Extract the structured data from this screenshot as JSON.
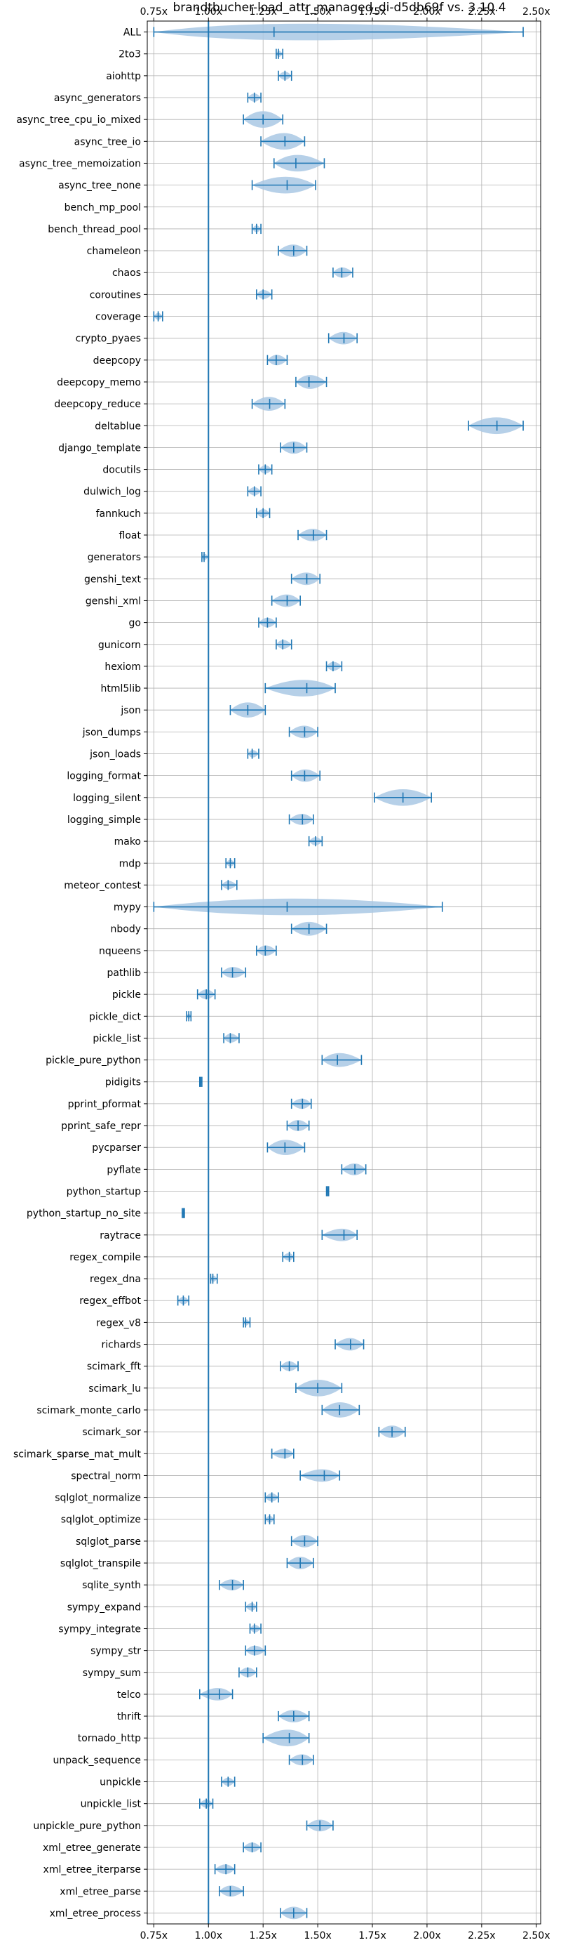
{
  "chart_data": {
    "type": "violin",
    "title": "brandtbucher-load_attr_managed_di-d5db69f vs. 3.10.4",
    "xlabel": "",
    "ylabel": "",
    "xlim": [
      0.72,
      2.52
    ],
    "xticks": [
      0.75,
      1.0,
      1.25,
      1.5,
      1.75,
      2.0,
      2.25,
      2.5
    ],
    "xtick_labels": [
      "0.75x",
      "1.00x",
      "1.25x",
      "1.50x",
      "1.75x",
      "2.00x",
      "2.25x",
      "2.50x"
    ],
    "reference_line": 1.0,
    "grid": true,
    "tick_labels_top_and_bottom": true,
    "colors": {
      "violin_fill": "#a9c8e4",
      "line": "#1f77b4",
      "grid": "#b0b0b0"
    },
    "benchmarks": [
      {
        "name": "ALL",
        "min": 0.75,
        "max": 2.44,
        "mean": 1.3,
        "median": 1.3,
        "width": 0.45
      },
      {
        "name": "2to3",
        "min": 1.31,
        "max": 1.34,
        "mean": 1.32,
        "median": 1.32,
        "width": 0.015
      },
      {
        "name": "aiohttp",
        "min": 1.32,
        "max": 1.38,
        "mean": 1.35,
        "median": 1.35,
        "width": 0.03
      },
      {
        "name": "async_generators",
        "min": 1.18,
        "max": 1.24,
        "mean": 1.21,
        "median": 1.21,
        "width": 0.03
      },
      {
        "name": "async_tree_cpu_io_mixed",
        "min": 1.16,
        "max": 1.34,
        "mean": 1.25,
        "median": 1.25,
        "width": 0.09
      },
      {
        "name": "async_tree_io",
        "min": 1.24,
        "max": 1.44,
        "mean": 1.35,
        "median": 1.35,
        "width": 0.1
      },
      {
        "name": "async_tree_memoization",
        "min": 1.3,
        "max": 1.53,
        "mean": 1.4,
        "median": 1.38,
        "width": 0.11
      },
      {
        "name": "async_tree_none",
        "min": 1.2,
        "max": 1.49,
        "mean": 1.36,
        "median": 1.36,
        "width": 0.14
      },
      {
        "name": "bench_mp_pool",
        "min": null,
        "max": null,
        "mean": null,
        "median": null,
        "width": 0
      },
      {
        "name": "bench_thread_pool",
        "min": 1.2,
        "max": 1.24,
        "mean": 1.22,
        "median": 1.22,
        "width": 0.02
      },
      {
        "name": "chameleon",
        "min": 1.32,
        "max": 1.45,
        "mean": 1.39,
        "median": 1.39,
        "width": 0.06
      },
      {
        "name": "chaos",
        "min": 1.57,
        "max": 1.66,
        "mean": 1.61,
        "median": 1.61,
        "width": 0.045
      },
      {
        "name": "coroutines",
        "min": 1.22,
        "max": 1.29,
        "mean": 1.25,
        "median": 1.25,
        "width": 0.035
      },
      {
        "name": "coverage",
        "min": 0.75,
        "max": 0.79,
        "mean": 0.77,
        "median": 0.77,
        "width": 0.02
      },
      {
        "name": "crypto_pyaes",
        "min": 1.55,
        "max": 1.68,
        "mean": 1.62,
        "median": 1.62,
        "width": 0.06
      },
      {
        "name": "deepcopy",
        "min": 1.27,
        "max": 1.36,
        "mean": 1.31,
        "median": 1.31,
        "width": 0.045
      },
      {
        "name": "deepcopy_memo",
        "min": 1.4,
        "max": 1.54,
        "mean": 1.46,
        "median": 1.46,
        "width": 0.07
      },
      {
        "name": "deepcopy_reduce",
        "min": 1.2,
        "max": 1.35,
        "mean": 1.28,
        "median": 1.28,
        "width": 0.07
      },
      {
        "name": "deltablue",
        "min": 2.19,
        "max": 2.44,
        "mean": 2.32,
        "median": 2.32,
        "width": 0.12
      },
      {
        "name": "django_template",
        "min": 1.33,
        "max": 1.45,
        "mean": 1.39,
        "median": 1.39,
        "width": 0.06
      },
      {
        "name": "docutils",
        "min": 1.23,
        "max": 1.29,
        "mean": 1.26,
        "median": 1.26,
        "width": 0.03
      },
      {
        "name": "dulwich_log",
        "min": 1.18,
        "max": 1.24,
        "mean": 1.21,
        "median": 1.21,
        "width": 0.03
      },
      {
        "name": "fannkuch",
        "min": 1.22,
        "max": 1.28,
        "mean": 1.25,
        "median": 1.25,
        "width": 0.03
      },
      {
        "name": "float",
        "min": 1.41,
        "max": 1.54,
        "mean": 1.48,
        "median": 1.48,
        "width": 0.06
      },
      {
        "name": "generators",
        "min": 0.97,
        "max": 1.0,
        "mean": 0.98,
        "median": 0.98,
        "width": 0.015
      },
      {
        "name": "genshi_text",
        "min": 1.38,
        "max": 1.51,
        "mean": 1.45,
        "median": 1.45,
        "width": 0.06
      },
      {
        "name": "genshi_xml",
        "min": 1.29,
        "max": 1.42,
        "mean": 1.36,
        "median": 1.36,
        "width": 0.06
      },
      {
        "name": "go",
        "min": 1.23,
        "max": 1.31,
        "mean": 1.27,
        "median": 1.27,
        "width": 0.04
      },
      {
        "name": "gunicorn",
        "min": 1.31,
        "max": 1.38,
        "mean": 1.34,
        "median": 1.34,
        "width": 0.035
      },
      {
        "name": "hexiom",
        "min": 1.54,
        "max": 1.61,
        "mean": 1.57,
        "median": 1.57,
        "width": 0.035
      },
      {
        "name": "html5lib",
        "min": 1.26,
        "max": 1.58,
        "mean": 1.45,
        "median": 1.45,
        "width": 0.13
      },
      {
        "name": "json",
        "min": 1.1,
        "max": 1.26,
        "mean": 1.18,
        "median": 1.18,
        "width": 0.08
      },
      {
        "name": "json_dumps",
        "min": 1.37,
        "max": 1.5,
        "mean": 1.44,
        "median": 1.44,
        "width": 0.06
      },
      {
        "name": "json_loads",
        "min": 1.18,
        "max": 1.23,
        "mean": 1.2,
        "median": 1.2,
        "width": 0.025
      },
      {
        "name": "logging_format",
        "min": 1.38,
        "max": 1.51,
        "mean": 1.44,
        "median": 1.44,
        "width": 0.06
      },
      {
        "name": "logging_silent",
        "min": 1.76,
        "max": 2.02,
        "mean": 1.89,
        "median": 1.89,
        "width": 0.13
      },
      {
        "name": "logging_simple",
        "min": 1.37,
        "max": 1.48,
        "mean": 1.43,
        "median": 1.43,
        "width": 0.05
      },
      {
        "name": "mako",
        "min": 1.46,
        "max": 1.52,
        "mean": 1.49,
        "median": 1.49,
        "width": 0.03
      },
      {
        "name": "mdp",
        "min": 1.08,
        "max": 1.12,
        "mean": 1.1,
        "median": 1.1,
        "width": 0.02
      },
      {
        "name": "meteor_contest",
        "min": 1.06,
        "max": 1.13,
        "mean": 1.09,
        "median": 1.09,
        "width": 0.03
      },
      {
        "name": "mypy",
        "min": 0.75,
        "max": 2.07,
        "mean": 1.36,
        "median": 1.36,
        "width": 0.6
      },
      {
        "name": "nbody",
        "min": 1.38,
        "max": 1.54,
        "mean": 1.46,
        "median": 1.46,
        "width": 0.07
      },
      {
        "name": "nqueens",
        "min": 1.22,
        "max": 1.31,
        "mean": 1.26,
        "median": 1.26,
        "width": 0.045
      },
      {
        "name": "pathlib",
        "min": 1.06,
        "max": 1.17,
        "mean": 1.11,
        "median": 1.11,
        "width": 0.05
      },
      {
        "name": "pickle",
        "min": 0.95,
        "max": 1.03,
        "mean": 0.99,
        "median": 0.99,
        "width": 0.04
      },
      {
        "name": "pickle_dict",
        "min": 0.9,
        "max": 0.92,
        "mean": 0.91,
        "median": 0.91,
        "width": 0.01
      },
      {
        "name": "pickle_list",
        "min": 1.07,
        "max": 1.14,
        "mean": 1.1,
        "median": 1.1,
        "width": 0.035
      },
      {
        "name": "pickle_pure_python",
        "min": 1.52,
        "max": 1.7,
        "mean": 1.59,
        "median": 1.59,
        "width": 0.07
      },
      {
        "name": "pidigits",
        "min": 0.96,
        "max": 0.97,
        "mean": 0.965,
        "median": 0.965,
        "width": 0.005
      },
      {
        "name": "pprint_pformat",
        "min": 1.38,
        "max": 1.47,
        "mean": 1.43,
        "median": 1.43,
        "width": 0.045
      },
      {
        "name": "pprint_safe_repr",
        "min": 1.36,
        "max": 1.46,
        "mean": 1.41,
        "median": 1.41,
        "width": 0.05
      },
      {
        "name": "pycparser",
        "min": 1.27,
        "max": 1.44,
        "mean": 1.35,
        "median": 1.35,
        "width": 0.08
      },
      {
        "name": "pyflate",
        "min": 1.61,
        "max": 1.72,
        "mean": 1.67,
        "median": 1.67,
        "width": 0.055
      },
      {
        "name": "python_startup",
        "min": 1.54,
        "max": 1.55,
        "mean": 1.545,
        "median": 1.545,
        "width": 0.005
      },
      {
        "name": "python_startup_no_site",
        "min": 0.88,
        "max": 0.89,
        "mean": 0.885,
        "median": 0.885,
        "width": 0.005
      },
      {
        "name": "raytrace",
        "min": 1.52,
        "max": 1.68,
        "mean": 1.62,
        "median": 1.62,
        "width": 0.06
      },
      {
        "name": "regex_compile",
        "min": 1.34,
        "max": 1.39,
        "mean": 1.37,
        "median": 1.37,
        "width": 0.025
      },
      {
        "name": "regex_dna",
        "min": 1.01,
        "max": 1.04,
        "mean": 1.02,
        "median": 1.02,
        "width": 0.015
      },
      {
        "name": "regex_effbot",
        "min": 0.86,
        "max": 0.91,
        "mean": 0.885,
        "median": 0.885,
        "width": 0.025
      },
      {
        "name": "regex_v8",
        "min": 1.16,
        "max": 1.19,
        "mean": 1.17,
        "median": 1.17,
        "width": 0.015
      },
      {
        "name": "richards",
        "min": 1.58,
        "max": 1.71,
        "mean": 1.65,
        "median": 1.65,
        "width": 0.06
      },
      {
        "name": "scimark_fft",
        "min": 1.33,
        "max": 1.41,
        "mean": 1.37,
        "median": 1.37,
        "width": 0.04
      },
      {
        "name": "scimark_lu",
        "min": 1.4,
        "max": 1.61,
        "mean": 1.5,
        "median": 1.5,
        "width": 0.09
      },
      {
        "name": "scimark_monte_carlo",
        "min": 1.52,
        "max": 1.69,
        "mean": 1.6,
        "median": 1.6,
        "width": 0.08
      },
      {
        "name": "scimark_sor",
        "min": 1.78,
        "max": 1.9,
        "mean": 1.84,
        "median": 1.84,
        "width": 0.06
      },
      {
        "name": "scimark_sparse_mat_mult",
        "min": 1.29,
        "max": 1.39,
        "mean": 1.35,
        "median": 1.35,
        "width": 0.04
      },
      {
        "name": "spectral_norm",
        "min": 1.42,
        "max": 1.6,
        "mean": 1.53,
        "median": 1.53,
        "width": 0.06
      },
      {
        "name": "sqlglot_normalize",
        "min": 1.26,
        "max": 1.32,
        "mean": 1.29,
        "median": 1.29,
        "width": 0.03
      },
      {
        "name": "sqlglot_optimize",
        "min": 1.26,
        "max": 1.3,
        "mean": 1.28,
        "median": 1.28,
        "width": 0.02
      },
      {
        "name": "sqlglot_parse",
        "min": 1.38,
        "max": 1.5,
        "mean": 1.44,
        "median": 1.44,
        "width": 0.06
      },
      {
        "name": "sqlglot_transpile",
        "min": 1.36,
        "max": 1.48,
        "mean": 1.42,
        "median": 1.42,
        "width": 0.06
      },
      {
        "name": "sqlite_synth",
        "min": 1.05,
        "max": 1.16,
        "mean": 1.11,
        "median": 1.11,
        "width": 0.05
      },
      {
        "name": "sympy_expand",
        "min": 1.17,
        "max": 1.22,
        "mean": 1.2,
        "median": 1.2,
        "width": 0.025
      },
      {
        "name": "sympy_integrate",
        "min": 1.19,
        "max": 1.24,
        "mean": 1.21,
        "median": 1.21,
        "width": 0.025
      },
      {
        "name": "sympy_str",
        "min": 1.17,
        "max": 1.26,
        "mean": 1.21,
        "median": 1.21,
        "width": 0.04
      },
      {
        "name": "sympy_sum",
        "min": 1.14,
        "max": 1.22,
        "mean": 1.18,
        "median": 1.18,
        "width": 0.04
      },
      {
        "name": "telco",
        "min": 0.96,
        "max": 1.11,
        "mean": 1.05,
        "median": 1.05,
        "width": 0.06
      },
      {
        "name": "thrift",
        "min": 1.32,
        "max": 1.46,
        "mean": 1.39,
        "median": 1.39,
        "width": 0.06
      },
      {
        "name": "tornado_http",
        "min": 1.25,
        "max": 1.46,
        "mean": 1.37,
        "median": 1.37,
        "width": 0.1
      },
      {
        "name": "unpack_sequence",
        "min": 1.37,
        "max": 1.48,
        "mean": 1.43,
        "median": 1.43,
        "width": 0.05
      },
      {
        "name": "unpickle",
        "min": 1.06,
        "max": 1.12,
        "mean": 1.09,
        "median": 1.09,
        "width": 0.03
      },
      {
        "name": "unpickle_list",
        "min": 0.96,
        "max": 1.02,
        "mean": 0.99,
        "median": 0.99,
        "width": 0.03
      },
      {
        "name": "unpickle_pure_python",
        "min": 1.45,
        "max": 1.57,
        "mean": 1.51,
        "median": 1.51,
        "width": 0.055
      },
      {
        "name": "xml_etree_generate",
        "min": 1.16,
        "max": 1.24,
        "mean": 1.2,
        "median": 1.2,
        "width": 0.04
      },
      {
        "name": "xml_etree_iterparse",
        "min": 1.03,
        "max": 1.12,
        "mean": 1.08,
        "median": 1.08,
        "width": 0.04
      },
      {
        "name": "xml_etree_parse",
        "min": 1.05,
        "max": 1.16,
        "mean": 1.1,
        "median": 1.1,
        "width": 0.05
      },
      {
        "name": "xml_etree_process",
        "min": 1.33,
        "max": 1.45,
        "mean": 1.39,
        "median": 1.39,
        "width": 0.06
      }
    ]
  }
}
